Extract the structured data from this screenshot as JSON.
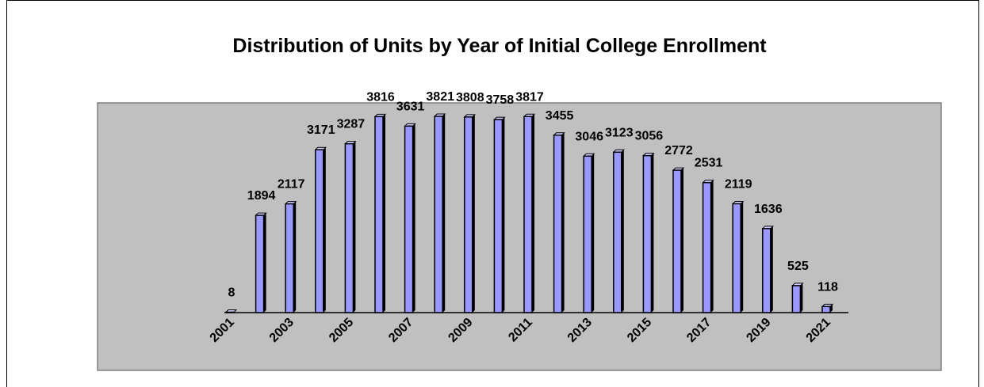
{
  "chart_data": {
    "type": "bar",
    "title": "Distribution of Units by Year of Initial College Enrollment",
    "categories": [
      "2001",
      null,
      "2003",
      null,
      "2005",
      null,
      "2007",
      null,
      "2009",
      null,
      "2011",
      null,
      "2013",
      null,
      "2015",
      null,
      "2017",
      null,
      "2019",
      null,
      "2021"
    ],
    "values": [
      8,
      1894,
      2117,
      3171,
      3287,
      3816,
      3631,
      3821,
      3808,
      3758,
      3817,
      3455,
      3046,
      3123,
      3056,
      2772,
      2531,
      2119,
      1636,
      525,
      118
    ],
    "color": "#9999ff"
  }
}
